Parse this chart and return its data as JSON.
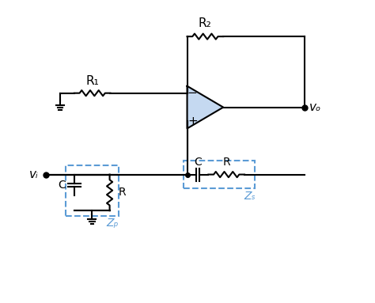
{
  "bg_color": "#ffffff",
  "line_color": "#000000",
  "dashed_color": "#5b9bd5",
  "opamp_fill": "#c5d9f1",
  "opamp_stroke": "#000000",
  "fig_width": 4.74,
  "fig_height": 3.83,
  "dpi": 100,
  "labels": {
    "R1": "R₁",
    "R2": "R₂",
    "C_series": "C",
    "R_series": "R",
    "C_parallel": "C",
    "R_parallel": "R",
    "Zs": "Zₛ",
    "Zp": "Zₚ",
    "vo": "vₒ",
    "vi": "vᵢ"
  }
}
